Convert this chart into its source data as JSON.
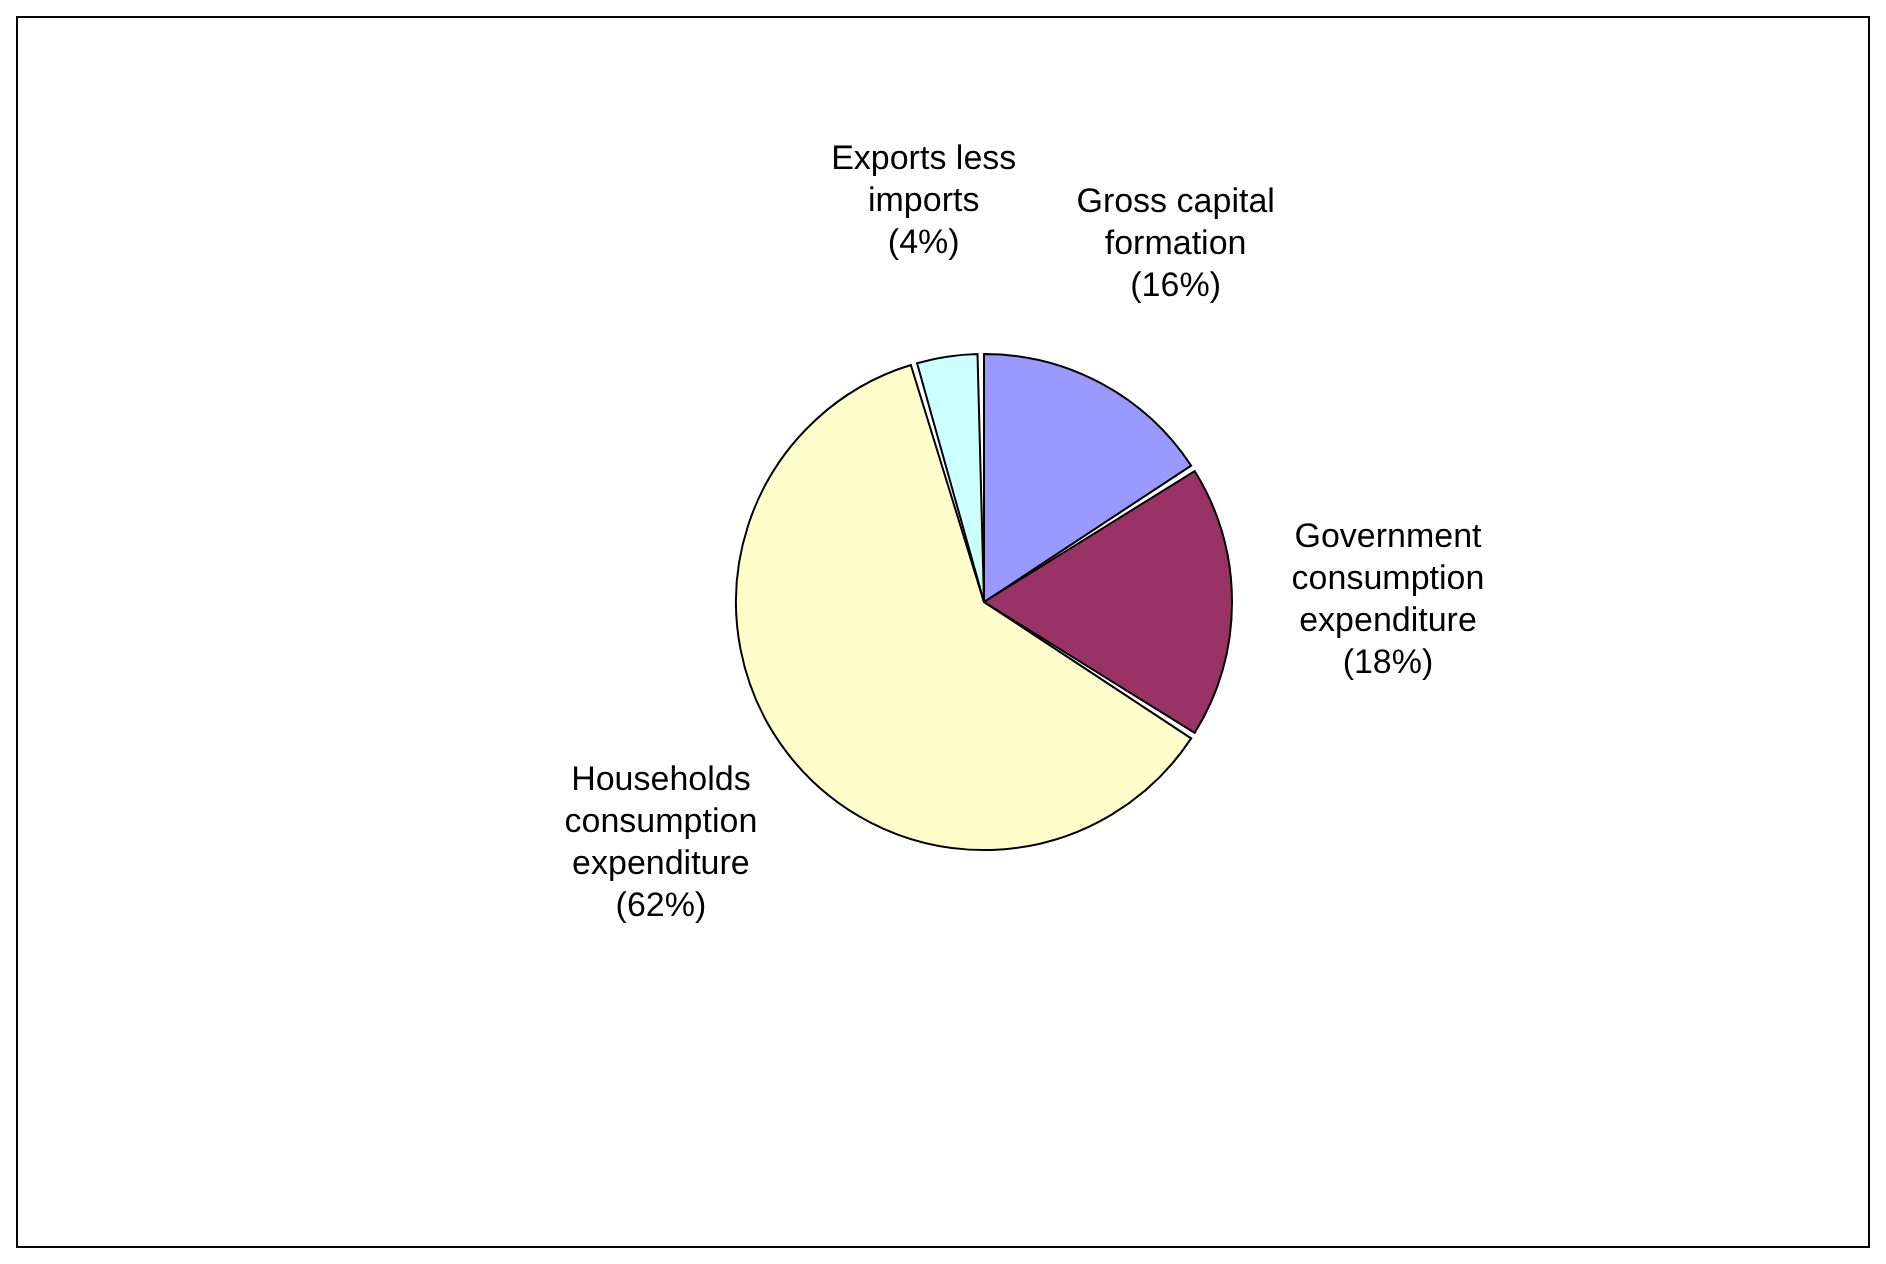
{
  "chart_data": {
    "type": "pie",
    "categories": [
      "Gross capital formation",
      "Government consumption expenditure",
      "Households consumption expenditure",
      "Exports less imports"
    ],
    "values": [
      16,
      18,
      62,
      4
    ],
    "value_labels": [
      "(16%)",
      "(18%)",
      "(62%)",
      "(4%)"
    ],
    "colors": [
      "#9999ff",
      "#993366",
      "#ffffcc",
      "#ccffff"
    ],
    "legend": false
  }
}
